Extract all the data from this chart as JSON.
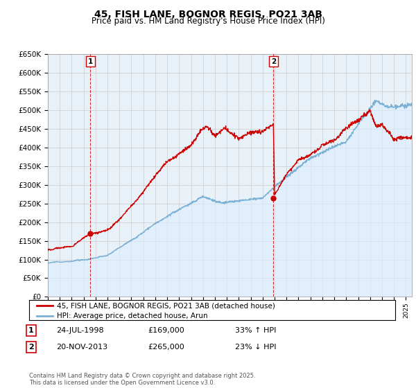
{
  "title": "45, FISH LANE, BOGNOR REGIS, PO21 3AB",
  "subtitle": "Price paid vs. HM Land Registry's House Price Index (HPI)",
  "legend_line1": "45, FISH LANE, BOGNOR REGIS, PO21 3AB (detached house)",
  "legend_line2": "HPI: Average price, detached house, Arun",
  "annotation1_date": "24-JUL-1998",
  "annotation1_price": "£169,000",
  "annotation1_hpi": "33% ↑ HPI",
  "annotation2_date": "20-NOV-2013",
  "annotation2_price": "£265,000",
  "annotation2_hpi": "23% ↓ HPI",
  "footer": "Contains HM Land Registry data © Crown copyright and database right 2025.\nThis data is licensed under the Open Government Licence v3.0.",
  "ylim": [
    0,
    650000
  ],
  "yticks": [
    0,
    50000,
    100000,
    150000,
    200000,
    250000,
    300000,
    350000,
    400000,
    450000,
    500000,
    550000,
    600000,
    650000
  ],
  "red_color": "#cc0000",
  "blue_color": "#7ab0d4",
  "blue_fill_color": "#ddeeff",
  "grid_color": "#cccccc",
  "background_color": "#ffffff",
  "chart_bg_color": "#e8f0f8",
  "sale1_x": 1998.57,
  "sale1_y": 169000,
  "sale2_x": 2013.9,
  "sale2_y": 265000,
  "xlim_left": 1995.0,
  "xlim_right": 2025.5
}
